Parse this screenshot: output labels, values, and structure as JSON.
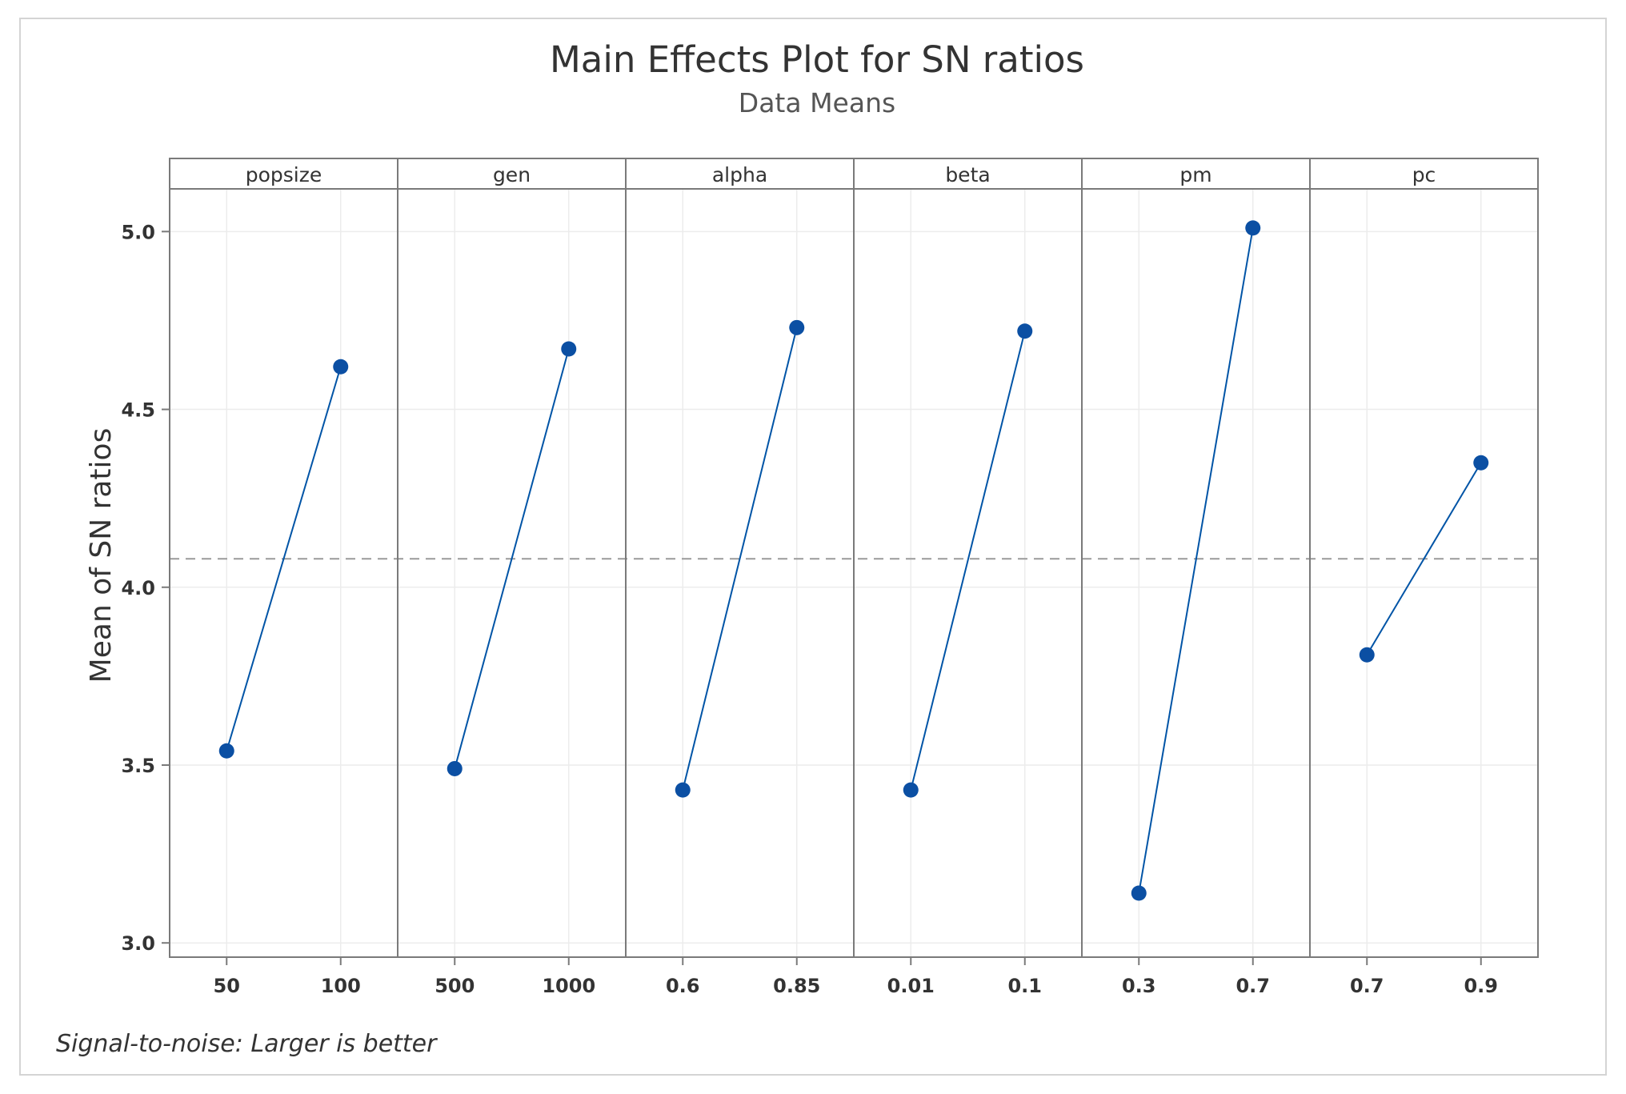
{
  "chart_data": {
    "type": "line",
    "title": "Main Effects Plot for SN ratios",
    "subtitle": "Data Means",
    "ylabel": "Mean of SN ratios",
    "ylim": [
      2.96,
      5.12
    ],
    "yticks": [
      3.0,
      3.5,
      4.0,
      4.5,
      5.0
    ],
    "ytick_labels": [
      "3.0",
      "3.5",
      "4.0",
      "4.5",
      "5.0"
    ],
    "grand_mean": 4.08,
    "grid": true,
    "footnote": "Signal-to-noise: Larger is better",
    "panels": [
      {
        "factor": "popsize",
        "levels": [
          "50",
          "100"
        ],
        "values": [
          3.54,
          4.62
        ]
      },
      {
        "factor": "gen",
        "levels": [
          "500",
          "1000"
        ],
        "values": [
          3.49,
          4.67
        ]
      },
      {
        "factor": "alpha",
        "levels": [
          "0.6",
          "0.85"
        ],
        "values": [
          3.43,
          4.73
        ]
      },
      {
        "factor": "beta",
        "levels": [
          "0.01",
          "0.1"
        ],
        "values": [
          3.43,
          4.72
        ]
      },
      {
        "factor": "pm",
        "levels": [
          "0.3",
          "0.7"
        ],
        "values": [
          3.14,
          5.01
        ]
      },
      {
        "factor": "pc",
        "levels": [
          "0.7",
          "0.9"
        ],
        "values": [
          3.81,
          4.35
        ]
      }
    ]
  },
  "colors": {
    "series": "#0054a6",
    "marker": "#0b4fa3",
    "panel_border": "#7a7a7a",
    "grid": "#ececec",
    "mean_line": "#9a9a9a",
    "text": "#333333"
  }
}
